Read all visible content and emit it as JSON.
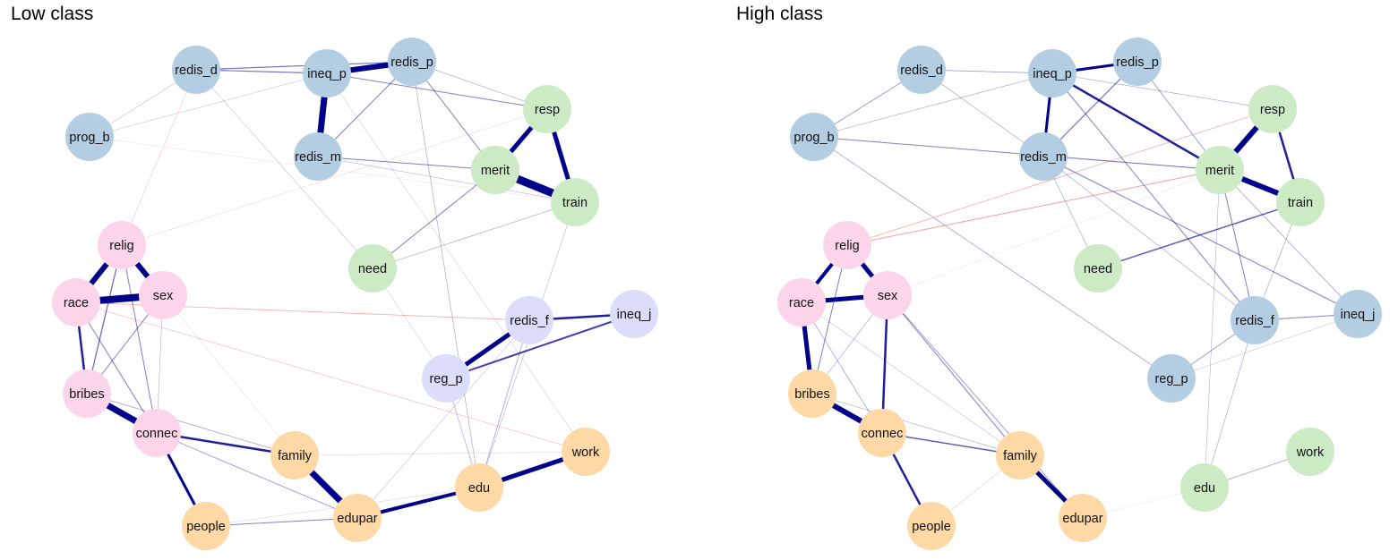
{
  "colors": {
    "blue": "#b3cde3",
    "green": "#ccebc5",
    "pink": "#fdd5ea",
    "orange": "#fed9a6",
    "lavender": "#dcdcfb",
    "pos_edge": "#00008b",
    "neg_edge": "#ee3b3b"
  },
  "panels": [
    {
      "id": "low",
      "title": "Low class",
      "nodes": [
        {
          "id": "redis_d",
          "label": "redis_d",
          "color": "blue"
        },
        {
          "id": "ineq_p",
          "label": "ineq_p",
          "color": "blue"
        },
        {
          "id": "redis_p",
          "label": "redis_p",
          "color": "blue"
        },
        {
          "id": "prog_b",
          "label": "prog_b",
          "color": "blue"
        },
        {
          "id": "redis_m",
          "label": "redis_m",
          "color": "blue"
        },
        {
          "id": "resp",
          "label": "resp",
          "color": "green"
        },
        {
          "id": "merit",
          "label": "merit",
          "color": "green"
        },
        {
          "id": "train",
          "label": "train",
          "color": "green"
        },
        {
          "id": "need",
          "label": "need",
          "color": "green"
        },
        {
          "id": "relig",
          "label": "relig",
          "color": "pink"
        },
        {
          "id": "race",
          "label": "race",
          "color": "pink"
        },
        {
          "id": "sex",
          "label": "sex",
          "color": "pink"
        },
        {
          "id": "bribes",
          "label": "bribes",
          "color": "pink"
        },
        {
          "id": "connec",
          "label": "connec",
          "color": "pink"
        },
        {
          "id": "redis_f",
          "label": "redis_f",
          "color": "lavender"
        },
        {
          "id": "ineq_j",
          "label": "ineq_j",
          "color": "lavender"
        },
        {
          "id": "reg_p",
          "label": "reg_p",
          "color": "lavender"
        },
        {
          "id": "family",
          "label": "family",
          "color": "orange"
        },
        {
          "id": "work",
          "label": "work",
          "color": "orange"
        },
        {
          "id": "edu",
          "label": "edu",
          "color": "orange"
        },
        {
          "id": "edupar",
          "label": "edupar",
          "color": "orange"
        },
        {
          "id": "people",
          "label": "people",
          "color": "orange"
        }
      ],
      "edges": [
        {
          "s": "ineq_p",
          "t": "redis_p",
          "w": 6,
          "sign": "pos"
        },
        {
          "s": "ineq_p",
          "t": "redis_m",
          "w": 7,
          "sign": "pos"
        },
        {
          "s": "redis_d",
          "t": "ineq_p",
          "w": 1.2,
          "sign": "pos"
        },
        {
          "s": "redis_d",
          "t": "redis_p",
          "w": 1.2,
          "sign": "pos"
        },
        {
          "s": "redis_d",
          "t": "prog_b",
          "w": 0.5,
          "sign": "pos"
        },
        {
          "s": "redis_d",
          "t": "need",
          "w": 0.5,
          "sign": "pos"
        },
        {
          "s": "redis_d",
          "t": "relig",
          "w": 0.5,
          "sign": "neg"
        },
        {
          "s": "ineq_p",
          "t": "resp",
          "w": 1,
          "sign": "pos"
        },
        {
          "s": "ineq_p",
          "t": "prog_b",
          "w": 0.4,
          "sign": "pos"
        },
        {
          "s": "ineq_p",
          "t": "work",
          "w": 0.4,
          "sign": "pos"
        },
        {
          "s": "redis_p",
          "t": "redis_m",
          "w": 1,
          "sign": "pos"
        },
        {
          "s": "redis_p",
          "t": "resp",
          "w": 0.6,
          "sign": "pos"
        },
        {
          "s": "redis_p",
          "t": "merit",
          "w": 1,
          "sign": "pos"
        },
        {
          "s": "redis_p",
          "t": "edu",
          "w": 0.6,
          "sign": "pos"
        },
        {
          "s": "redis_m",
          "t": "merit",
          "w": 1,
          "sign": "pos"
        },
        {
          "s": "redis_m",
          "t": "train",
          "w": 0.5,
          "sign": "pos"
        },
        {
          "s": "prog_b",
          "t": "train",
          "w": 0.3,
          "sign": "neg"
        },
        {
          "s": "resp",
          "t": "merit",
          "w": 5,
          "sign": "pos"
        },
        {
          "s": "resp",
          "t": "train",
          "w": 5,
          "sign": "pos"
        },
        {
          "s": "merit",
          "t": "train",
          "w": 9,
          "sign": "pos"
        },
        {
          "s": "merit",
          "t": "need",
          "w": 1,
          "sign": "pos"
        },
        {
          "s": "train",
          "t": "need",
          "w": 0.6,
          "sign": "pos"
        },
        {
          "s": "train",
          "t": "edu",
          "w": 0.5,
          "sign": "pos"
        },
        {
          "s": "resp",
          "t": "relig",
          "w": 0.4,
          "sign": "neg"
        },
        {
          "s": "need",
          "t": "reg_p",
          "w": 0.4,
          "sign": "pos"
        },
        {
          "s": "relig",
          "t": "race",
          "w": 6,
          "sign": "pos"
        },
        {
          "s": "relig",
          "t": "sex",
          "w": 6,
          "sign": "pos"
        },
        {
          "s": "race",
          "t": "sex",
          "w": 8,
          "sign": "pos"
        },
        {
          "s": "race",
          "t": "bribes",
          "w": 2.5,
          "sign": "pos"
        },
        {
          "s": "relig",
          "t": "bribes",
          "w": 1.3,
          "sign": "pos"
        },
        {
          "s": "relig",
          "t": "connec",
          "w": 1,
          "sign": "pos"
        },
        {
          "s": "race",
          "t": "connec",
          "w": 1,
          "sign": "pos"
        },
        {
          "s": "sex",
          "t": "bribes",
          "w": 1,
          "sign": "pos"
        },
        {
          "s": "sex",
          "t": "connec",
          "w": 0.5,
          "sign": "pos"
        },
        {
          "s": "sex",
          "t": "family",
          "w": 0.3,
          "sign": "pos"
        },
        {
          "s": "race",
          "t": "redis_f",
          "w": 0.8,
          "sign": "neg"
        },
        {
          "s": "race",
          "t": "work",
          "w": 0.6,
          "sign": "neg"
        },
        {
          "s": "bribes",
          "t": "connec",
          "w": 7,
          "sign": "pos"
        },
        {
          "s": "connec",
          "t": "family",
          "w": 2.5,
          "sign": "pos"
        },
        {
          "s": "connec",
          "t": "people",
          "w": 3,
          "sign": "pos"
        },
        {
          "s": "connec",
          "t": "edupar",
          "w": 0.8,
          "sign": "pos"
        },
        {
          "s": "bribes",
          "t": "family",
          "w": 0.7,
          "sign": "pos"
        },
        {
          "s": "redis_f",
          "t": "ineq_j",
          "w": 2.5,
          "sign": "pos"
        },
        {
          "s": "redis_f",
          "t": "reg_p",
          "w": 5,
          "sign": "pos"
        },
        {
          "s": "reg_p",
          "t": "ineq_j",
          "w": 2,
          "sign": "pos"
        },
        {
          "s": "redis_f",
          "t": "edu",
          "w": 0.7,
          "sign": "pos"
        },
        {
          "s": "redis_f",
          "t": "edupar",
          "w": 0.5,
          "sign": "pos"
        },
        {
          "s": "reg_p",
          "t": "edu",
          "w": 0.6,
          "sign": "pos"
        },
        {
          "s": "family",
          "t": "edupar",
          "w": 7,
          "sign": "pos"
        },
        {
          "s": "edupar",
          "t": "edu",
          "w": 4,
          "sign": "pos"
        },
        {
          "s": "edu",
          "t": "work",
          "w": 5,
          "sign": "pos"
        },
        {
          "s": "people",
          "t": "edupar",
          "w": 1,
          "sign": "pos"
        },
        {
          "s": "people",
          "t": "edu",
          "w": 0.3,
          "sign": "pos"
        },
        {
          "s": "family",
          "t": "work",
          "w": 0.3,
          "sign": "pos"
        }
      ]
    },
    {
      "id": "high",
      "title": "High class",
      "nodes": [
        {
          "id": "redis_d",
          "label": "redis_d",
          "color": "blue"
        },
        {
          "id": "ineq_p",
          "label": "ineq_p",
          "color": "blue"
        },
        {
          "id": "redis_p",
          "label": "redis_p",
          "color": "blue"
        },
        {
          "id": "prog_b",
          "label": "prog_b",
          "color": "blue"
        },
        {
          "id": "redis_m",
          "label": "redis_m",
          "color": "blue"
        },
        {
          "id": "resp",
          "label": "resp",
          "color": "green"
        },
        {
          "id": "merit",
          "label": "merit",
          "color": "green"
        },
        {
          "id": "train",
          "label": "train",
          "color": "green"
        },
        {
          "id": "need",
          "label": "need",
          "color": "green"
        },
        {
          "id": "relig",
          "label": "relig",
          "color": "pink"
        },
        {
          "id": "race",
          "label": "race",
          "color": "pink"
        },
        {
          "id": "sex",
          "label": "sex",
          "color": "pink"
        },
        {
          "id": "bribes",
          "label": "bribes",
          "color": "orange"
        },
        {
          "id": "connec",
          "label": "connec",
          "color": "orange"
        },
        {
          "id": "redis_f",
          "label": "redis_f",
          "color": "blue"
        },
        {
          "id": "ineq_j",
          "label": "ineq_j",
          "color": "blue"
        },
        {
          "id": "reg_p",
          "label": "reg_p",
          "color": "blue"
        },
        {
          "id": "family",
          "label": "family",
          "color": "orange"
        },
        {
          "id": "work",
          "label": "work",
          "color": "green"
        },
        {
          "id": "edu",
          "label": "edu",
          "color": "green"
        },
        {
          "id": "edupar",
          "label": "edupar",
          "color": "orange"
        },
        {
          "id": "people",
          "label": "people",
          "color": "orange"
        }
      ],
      "edges": [
        {
          "s": "ineq_p",
          "t": "redis_p",
          "w": 3,
          "sign": "pos"
        },
        {
          "s": "ineq_p",
          "t": "redis_m",
          "w": 3,
          "sign": "pos"
        },
        {
          "s": "redis_d",
          "t": "ineq_p",
          "w": 0.8,
          "sign": "pos"
        },
        {
          "s": "redis_d",
          "t": "prog_b",
          "w": 0.8,
          "sign": "pos"
        },
        {
          "s": "redis_d",
          "t": "redis_m",
          "w": 0.6,
          "sign": "pos"
        },
        {
          "s": "ineq_p",
          "t": "prog_b",
          "w": 0.6,
          "sign": "pos"
        },
        {
          "s": "ineq_p",
          "t": "merit",
          "w": 2.5,
          "sign": "pos"
        },
        {
          "s": "ineq_p",
          "t": "resp",
          "w": 0.6,
          "sign": "pos"
        },
        {
          "s": "ineq_p",
          "t": "redis_f",
          "w": 1,
          "sign": "pos"
        },
        {
          "s": "redis_p",
          "t": "redis_m",
          "w": 1.2,
          "sign": "pos"
        },
        {
          "s": "redis_p",
          "t": "merit",
          "w": 0.8,
          "sign": "pos"
        },
        {
          "s": "prog_b",
          "t": "merit",
          "w": 1,
          "sign": "pos"
        },
        {
          "s": "prog_b",
          "t": "reg_p",
          "w": 0.7,
          "sign": "pos"
        },
        {
          "s": "redis_m",
          "t": "need",
          "w": 0.6,
          "sign": "pos"
        },
        {
          "s": "redis_m",
          "t": "ineq_j",
          "w": 1,
          "sign": "pos"
        },
        {
          "s": "redis_m",
          "t": "redis_f",
          "w": 0.6,
          "sign": "pos"
        },
        {
          "s": "redis_m",
          "t": "merit",
          "w": 0.3,
          "sign": "pos"
        },
        {
          "s": "resp",
          "t": "merit",
          "w": 6,
          "sign": "pos"
        },
        {
          "s": "resp",
          "t": "train",
          "w": 2.5,
          "sign": "pos"
        },
        {
          "s": "merit",
          "t": "train",
          "w": 6,
          "sign": "pos"
        },
        {
          "s": "merit",
          "t": "redis_f",
          "w": 1,
          "sign": "pos"
        },
        {
          "s": "merit",
          "t": "ineq_j",
          "w": 0.7,
          "sign": "pos"
        },
        {
          "s": "merit",
          "t": "edu",
          "w": 0.5,
          "sign": "pos"
        },
        {
          "s": "train",
          "t": "need",
          "w": 1.5,
          "sign": "pos"
        },
        {
          "s": "train",
          "t": "redis_f",
          "w": 0.6,
          "sign": "pos"
        },
        {
          "s": "resp",
          "t": "relig",
          "w": 0.8,
          "sign": "neg"
        },
        {
          "s": "merit",
          "t": "relig",
          "w": 1,
          "sign": "neg"
        },
        {
          "s": "merit",
          "t": "sex",
          "w": 0.3,
          "sign": "neg"
        },
        {
          "s": "relig",
          "t": "race",
          "w": 4,
          "sign": "pos"
        },
        {
          "s": "relig",
          "t": "sex",
          "w": 5,
          "sign": "pos"
        },
        {
          "s": "race",
          "t": "sex",
          "w": 5,
          "sign": "pos"
        },
        {
          "s": "race",
          "t": "bribes",
          "w": 5,
          "sign": "pos"
        },
        {
          "s": "relig",
          "t": "bribes",
          "w": 1,
          "sign": "pos"
        },
        {
          "s": "race",
          "t": "connec",
          "w": 0.7,
          "sign": "pos"
        },
        {
          "s": "sex",
          "t": "bribes",
          "w": 0.6,
          "sign": "pos"
        },
        {
          "s": "sex",
          "t": "connec",
          "w": 2.5,
          "sign": "pos"
        },
        {
          "s": "sex",
          "t": "family",
          "w": 1,
          "sign": "pos"
        },
        {
          "s": "sex",
          "t": "edupar",
          "w": 0.8,
          "sign": "pos"
        },
        {
          "s": "race",
          "t": "family",
          "w": 0.5,
          "sign": "pos"
        },
        {
          "s": "bribes",
          "t": "connec",
          "w": 6,
          "sign": "pos"
        },
        {
          "s": "bribes",
          "t": "family",
          "w": 0.6,
          "sign": "pos"
        },
        {
          "s": "connec",
          "t": "family",
          "w": 1.5,
          "sign": "pos"
        },
        {
          "s": "connec",
          "t": "people",
          "w": 2.5,
          "sign": "pos"
        },
        {
          "s": "family",
          "t": "edupar",
          "w": 5,
          "sign": "pos"
        },
        {
          "s": "family",
          "t": "people",
          "w": 0.4,
          "sign": "pos"
        },
        {
          "s": "redis_f",
          "t": "ineq_j",
          "w": 1,
          "sign": "pos"
        },
        {
          "s": "redis_f",
          "t": "reg_p",
          "w": 0.8,
          "sign": "pos"
        },
        {
          "s": "redis_f",
          "t": "edu",
          "w": 0.6,
          "sign": "pos"
        },
        {
          "s": "reg_p",
          "t": "ineq_j",
          "w": 0.4,
          "sign": "pos"
        },
        {
          "s": "edu",
          "t": "work",
          "w": 0.7,
          "sign": "pos"
        },
        {
          "s": "edupar",
          "t": "edu",
          "w": 0.2,
          "sign": "pos"
        }
      ]
    }
  ]
}
